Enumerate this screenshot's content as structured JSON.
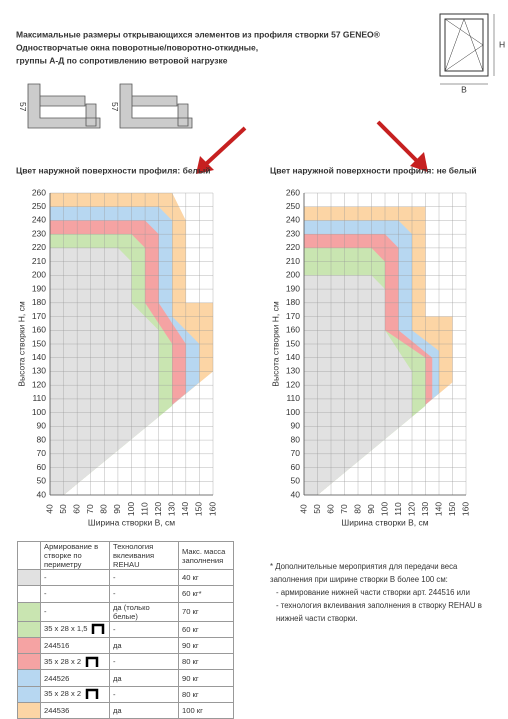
{
  "header": {
    "title": "Максимальные размеры открывающихся элементов из профиля створки 57 GENEO®",
    "subtitle1": "Одностворчатые окна поворотные/поворотно-откидные,",
    "subtitle2": "группы А-Д по сопротивлению ветровой нагрузке",
    "profile_label": "57",
    "icon_height": "H",
    "icon_width": "B"
  },
  "chart_data": [
    {
      "type": "region",
      "title": "Цвет наружной поверхности профиля: белый",
      "xlabel": "Ширина створки B, см",
      "ylabel": "Высота створки H, см",
      "xlim": [
        40,
        160
      ],
      "ylim": [
        40,
        260
      ],
      "xticks": [
        40,
        50,
        60,
        70,
        80,
        90,
        100,
        110,
        120,
        130,
        140,
        150,
        160
      ],
      "yticks": [
        40,
        50,
        60,
        70,
        80,
        90,
        100,
        110,
        120,
        130,
        140,
        150,
        160,
        170,
        180,
        190,
        200,
        210,
        220,
        230,
        240,
        250,
        260
      ],
      "grid": true,
      "series": [
        {
          "color": "#fcd5a5",
          "x": [
            40,
            130,
            140,
            140,
            160,
            160,
            50,
            40
          ],
          "y": [
            260,
            260,
            240,
            180,
            180,
            130,
            40,
            40
          ]
        },
        {
          "color": "#b7d7f1",
          "x": [
            40,
            120,
            130,
            130,
            150,
            150,
            50,
            40
          ],
          "y": [
            250,
            250,
            240,
            170,
            150,
            122,
            40,
            40
          ]
        },
        {
          "color": "#f5a3a3",
          "x": [
            40,
            110,
            120,
            120,
            140,
            140,
            50,
            40
          ],
          "y": [
            240,
            240,
            230,
            180,
            150,
            114,
            40,
            40
          ]
        },
        {
          "color": "#c9e5b1",
          "x": [
            40,
            100,
            110,
            110,
            130,
            130,
            50,
            40
          ],
          "y": [
            230,
            230,
            220,
            180,
            150,
            105,
            40,
            40
          ]
        },
        {
          "color": "#e1e1e1",
          "x": [
            40,
            90,
            100,
            100,
            120,
            120,
            50,
            40
          ],
          "y": [
            220,
            220,
            210,
            180,
            160,
            97,
            40,
            40
          ]
        }
      ]
    },
    {
      "type": "region",
      "title": "Цвет наружной поверхности профиля: не белый",
      "xlabel": "Ширина створки B, см",
      "ylabel": "Высота створки H, см",
      "xlim": [
        40,
        160
      ],
      "ylim": [
        40,
        260
      ],
      "xticks": [
        40,
        50,
        60,
        70,
        80,
        90,
        100,
        110,
        120,
        130,
        140,
        150,
        160
      ],
      "yticks": [
        40,
        50,
        60,
        70,
        80,
        90,
        100,
        110,
        120,
        130,
        140,
        150,
        160,
        170,
        180,
        190,
        200,
        210,
        220,
        230,
        240,
        250,
        260
      ],
      "grid": true,
      "series": [
        {
          "color": "#fcd5a5",
          "x": [
            40,
            130,
            130,
            150,
            150,
            50,
            40
          ],
          "y": [
            250,
            250,
            170,
            170,
            122,
            40,
            40
          ]
        },
        {
          "color": "#b7d7f1",
          "x": [
            40,
            110,
            120,
            120,
            140,
            140,
            50,
            40
          ],
          "y": [
            240,
            240,
            230,
            160,
            145,
            114,
            40,
            40
          ]
        },
        {
          "color": "#f5a3a3",
          "x": [
            40,
            100,
            110,
            110,
            135,
            135,
            50,
            40
          ],
          "y": [
            230,
            230,
            220,
            160,
            140,
            110,
            40,
            40
          ]
        },
        {
          "color": "#c9e5b1",
          "x": [
            40,
            90,
            100,
            100,
            130,
            130,
            50,
            40
          ],
          "y": [
            220,
            220,
            210,
            160,
            140,
            105,
            40,
            40
          ]
        },
        {
          "color": "#e1e1e1",
          "x": [
            40,
            90,
            100,
            100,
            120,
            120,
            50,
            40
          ],
          "y": [
            200,
            200,
            190,
            160,
            130,
            97,
            40,
            40
          ]
        }
      ]
    }
  ],
  "table": {
    "header": [
      "Армирование в створке по периметру",
      "Технология вклеивания REHAU",
      "Макс. масса заполнения"
    ],
    "rows": [
      {
        "color": "#e1e1e1",
        "reinforcement": "-",
        "technology": "-",
        "mass": "40 кг"
      },
      {
        "color": "#ffffff",
        "reinforcement": "-",
        "technology": "-",
        "mass": "60 кг*"
      },
      {
        "color": "#c9e5b1",
        "reinforcement": "-",
        "technology": "да (только белые)",
        "mass": "70 кг"
      },
      {
        "color": "#c9e5b1",
        "reinforcement": "35 x 28 x 1,5",
        "technology": "-",
        "mass": "60 кг"
      },
      {
        "color": "#f5a3a3",
        "reinforcement": "244516",
        "technology": "да",
        "mass": "90 кг"
      },
      {
        "color": "#f5a3a3",
        "reinforcement": "35 x 28 x 2",
        "technology": "-",
        "mass": "80 кг"
      },
      {
        "color": "#b7d7f1",
        "reinforcement": "244526",
        "technology": "да",
        "mass": "90 кг"
      },
      {
        "color": "#b7d7f1",
        "reinforcement": "35 x 28 x 2",
        "technology": "-",
        "mass": "80 кг"
      },
      {
        "color": "#fcd5a5",
        "reinforcement": "244536",
        "technology": "да",
        "mass": "100 кг"
      }
    ]
  },
  "notes": [
    "* Дополнительные мероприятия для передачи веса",
    "заполнения при ширине створки B более 100 см:",
    "- армирование нижней части створки арт. 244516 или",
    "- технология вклеивания заполнения в створку REHAU в",
    "нижней части створки."
  ]
}
